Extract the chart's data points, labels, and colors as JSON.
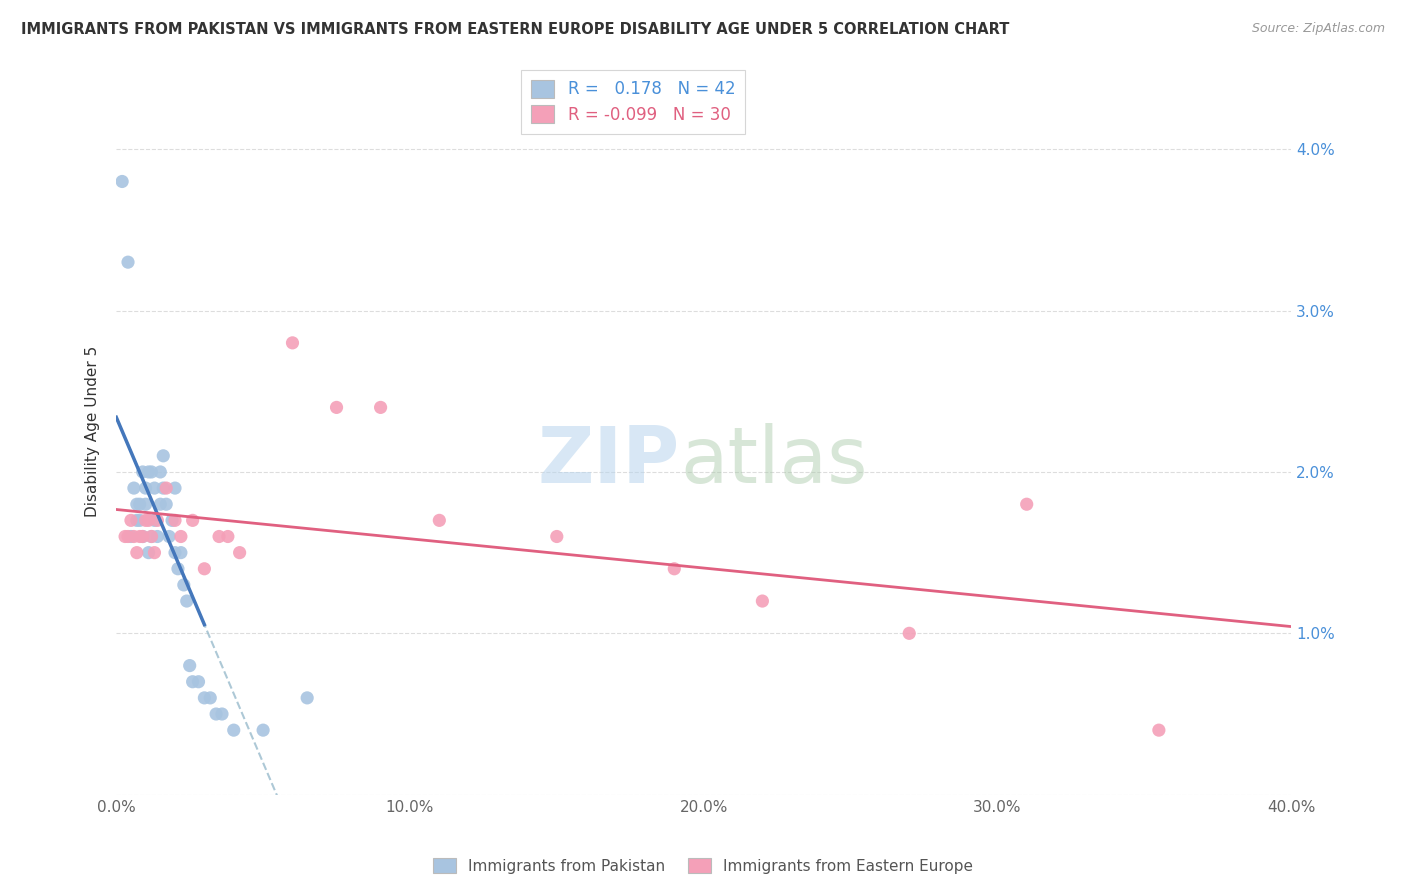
{
  "title": "IMMIGRANTS FROM PAKISTAN VS IMMIGRANTS FROM EASTERN EUROPE DISABILITY AGE UNDER 5 CORRELATION CHART",
  "source": "Source: ZipAtlas.com",
  "ylabel": "Disability Age Under 5",
  "xlim": [
    0.0,
    0.4
  ],
  "ylim": [
    0.0,
    0.045
  ],
  "xtick_vals": [
    0.0,
    0.05,
    0.1,
    0.15,
    0.2,
    0.25,
    0.3,
    0.35,
    0.4
  ],
  "xticklabels": [
    "0.0%",
    "",
    "10.0%",
    "",
    "20.0%",
    "",
    "30.0%",
    "",
    "40.0%"
  ],
  "ytick_vals": [
    0.0,
    0.01,
    0.02,
    0.03,
    0.04
  ],
  "yticklabels_right": [
    "",
    "1.0%",
    "2.0%",
    "3.0%",
    "4.0%"
  ],
  "R_blue": 0.178,
  "N_blue": 42,
  "R_pink": -0.099,
  "N_pink": 30,
  "color_blue": "#a8c4e0",
  "color_pink": "#f4a0b8",
  "trendline_blue_solid_color": "#4477bb",
  "trendline_blue_dash_color": "#99bbcc",
  "trendline_pink_color": "#e06080",
  "background_color": "#ffffff",
  "grid_color": "#dddddd",
  "blue_x": [
    0.002,
    0.004,
    0.005,
    0.006,
    0.007,
    0.007,
    0.008,
    0.008,
    0.009,
    0.009,
    0.01,
    0.01,
    0.011,
    0.011,
    0.012,
    0.012,
    0.013,
    0.013,
    0.014,
    0.015,
    0.015,
    0.016,
    0.016,
    0.017,
    0.018,
    0.019,
    0.02,
    0.02,
    0.021,
    0.022,
    0.023,
    0.024,
    0.025,
    0.026,
    0.028,
    0.03,
    0.032,
    0.034,
    0.036,
    0.04,
    0.05,
    0.065
  ],
  "blue_y": [
    0.038,
    0.033,
    0.016,
    0.019,
    0.017,
    0.018,
    0.017,
    0.018,
    0.016,
    0.02,
    0.019,
    0.018,
    0.02,
    0.015,
    0.016,
    0.02,
    0.017,
    0.019,
    0.016,
    0.02,
    0.018,
    0.019,
    0.021,
    0.018,
    0.016,
    0.017,
    0.019,
    0.015,
    0.014,
    0.015,
    0.013,
    0.012,
    0.008,
    0.007,
    0.007,
    0.006,
    0.006,
    0.005,
    0.005,
    0.004,
    0.004,
    0.006
  ],
  "pink_x": [
    0.003,
    0.004,
    0.005,
    0.006,
    0.007,
    0.008,
    0.009,
    0.01,
    0.011,
    0.012,
    0.013,
    0.014,
    0.017,
    0.02,
    0.022,
    0.026,
    0.03,
    0.035,
    0.038,
    0.042,
    0.06,
    0.075,
    0.09,
    0.11,
    0.15,
    0.19,
    0.22,
    0.27,
    0.31,
    0.355
  ],
  "pink_y": [
    0.016,
    0.016,
    0.017,
    0.016,
    0.015,
    0.016,
    0.016,
    0.017,
    0.017,
    0.016,
    0.015,
    0.017,
    0.019,
    0.017,
    0.016,
    0.017,
    0.014,
    0.016,
    0.016,
    0.015,
    0.028,
    0.024,
    0.024,
    0.017,
    0.016,
    0.014,
    0.012,
    0.01,
    0.018,
    0.004
  ]
}
